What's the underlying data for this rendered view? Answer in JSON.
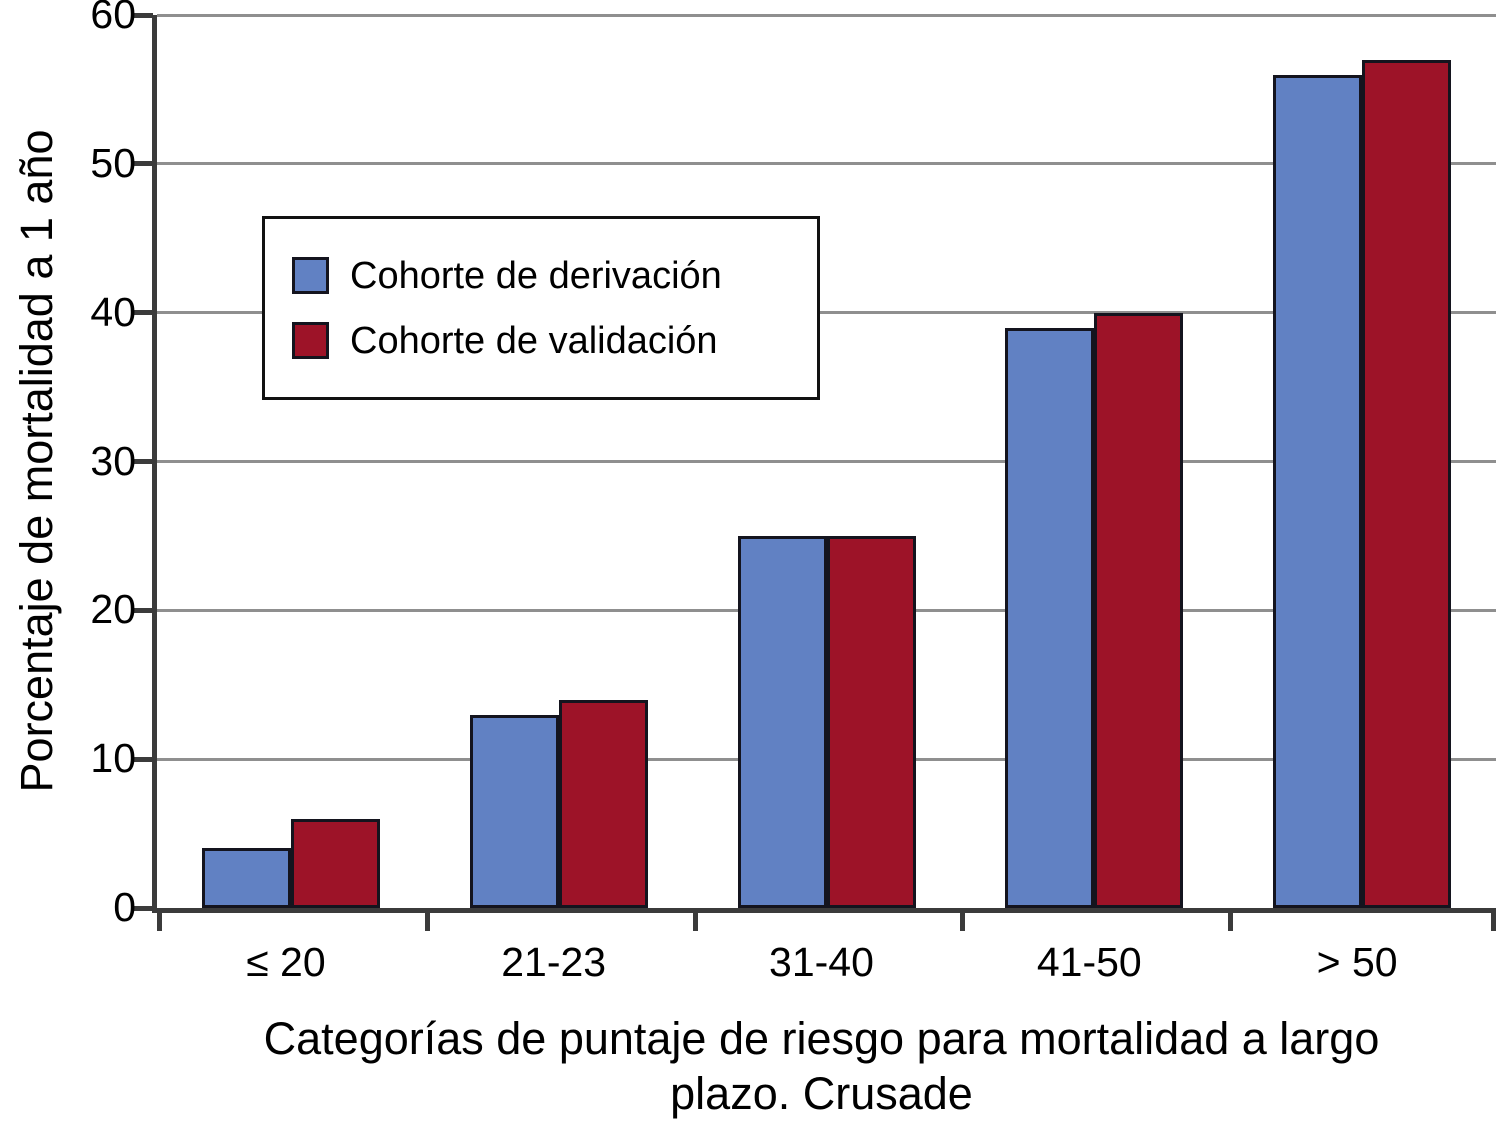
{
  "chart_data": {
    "type": "bar",
    "categories": [
      "≤ 20",
      "21-23",
      "31-40",
      "41-50",
      "> 50"
    ],
    "series": [
      {
        "name": "Cohorte de derivación",
        "color": "#6181c3",
        "values": [
          4,
          13,
          25,
          39,
          56
        ]
      },
      {
        "name": "Cohorte de validación",
        "color": "#9d1328",
        "values": [
          6,
          14,
          25,
          40,
          57
        ]
      }
    ],
    "title": "",
    "xlabel": "Categorías de puntaje de riesgo para mortalidad a largo plazo. Crusade",
    "ylabel": "Porcentaje de mortalidad a 1 año",
    "ylim": [
      0,
      60
    ],
    "yticks": [
      0,
      10,
      20,
      30,
      40,
      50,
      60
    ],
    "grid": "horizontal",
    "legend_position": "upper-left-inside",
    "colors": {
      "bar_outline": "#14141e",
      "axis": "#3b3b3b",
      "gridline": "#8f8f8f",
      "background": "#ffffff",
      "text": "#000000"
    }
  }
}
